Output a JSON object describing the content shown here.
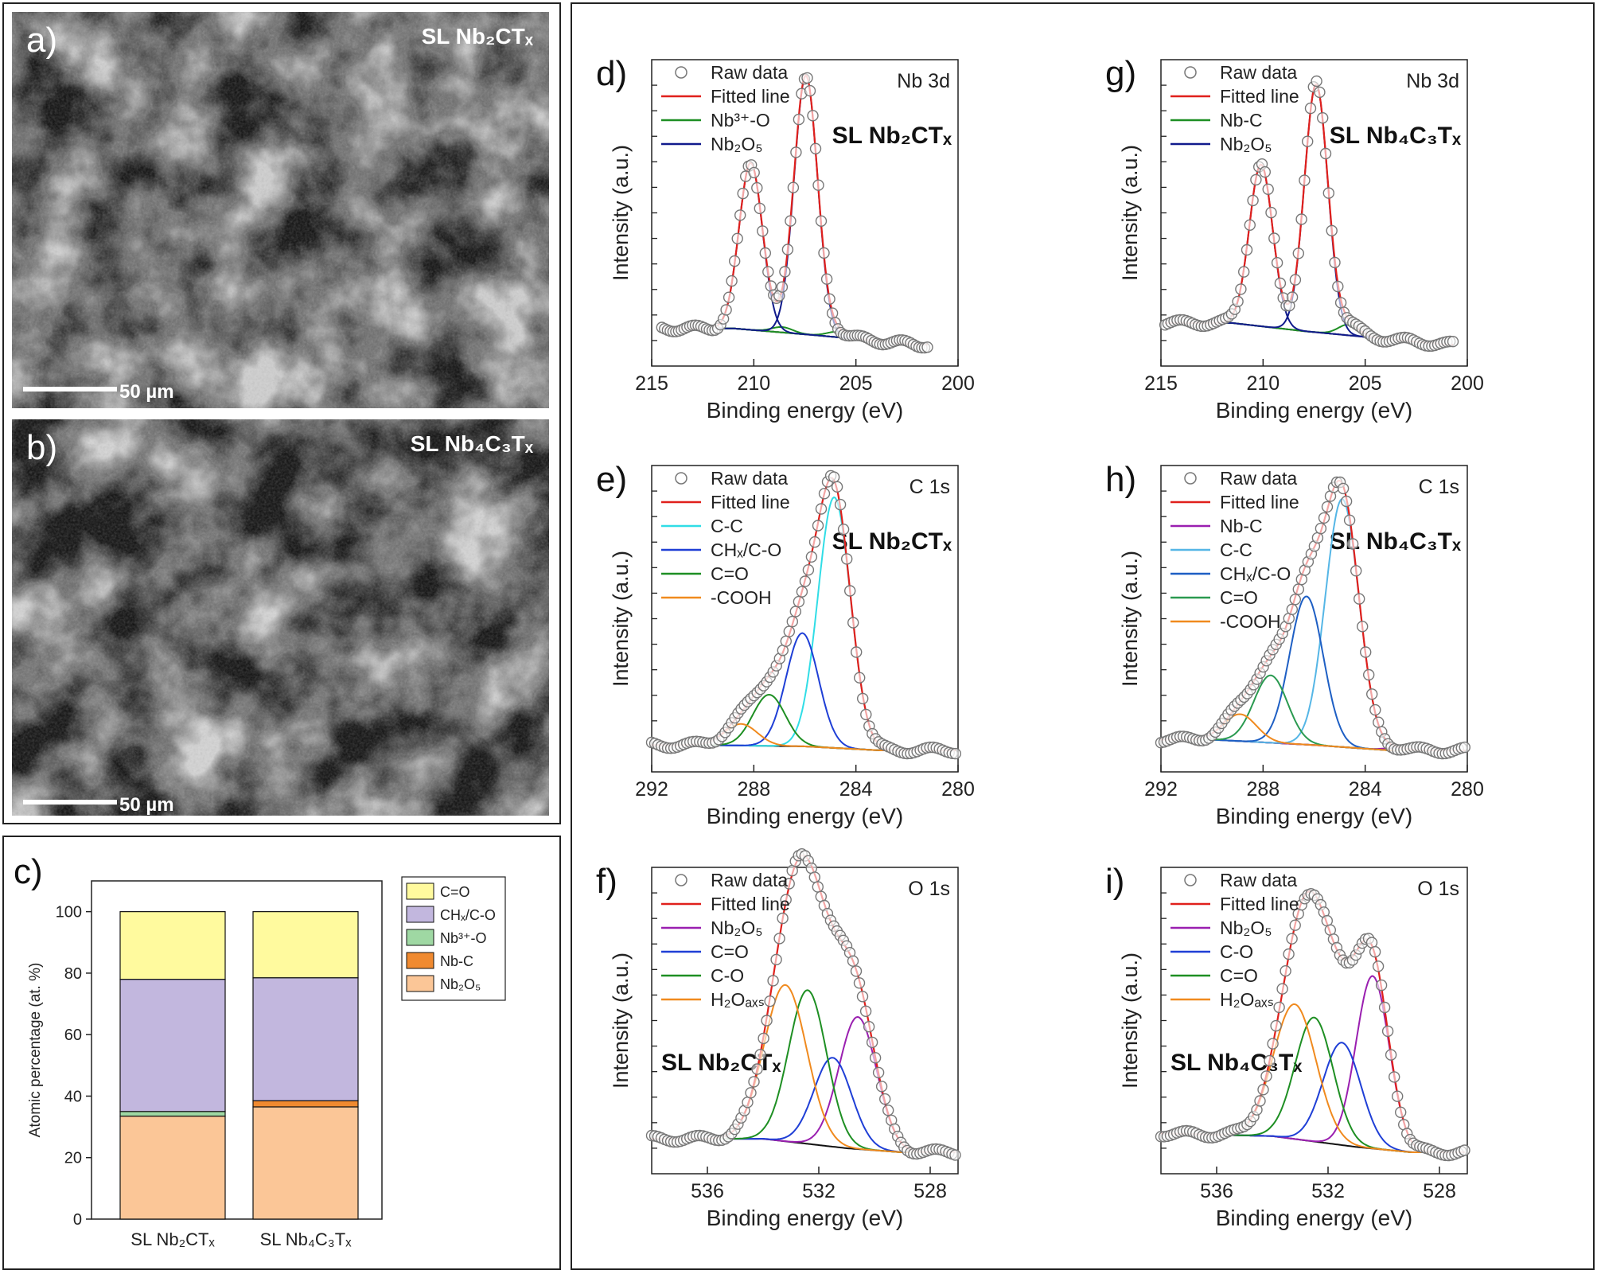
{
  "tem_panels": [
    {
      "letter": "a)",
      "sample_label": "SL Nb₂CTₓ",
      "scale_label": "50 µm"
    },
    {
      "letter": "b)",
      "sample_label": "SL Nb₄C₃Tₓ",
      "scale_label": "50 µm"
    }
  ],
  "colors": {
    "raw": "#777777",
    "fit": "#e0201c",
    "bg": "#111111",
    "green": "#1e8f23",
    "navy": "#101a8c",
    "cyan": "#30dde6",
    "blue": "#1f3fd6",
    "orange": "#f08a1e",
    "purple": "#9a1fb0",
    "skyblue": "#55b6e6",
    "medgreen": "#2a9a50",
    "medblue": "#1e5fc4"
  },
  "chart_data": [
    {
      "panel": "c)",
      "type": "bar",
      "stacked": true,
      "categories": [
        "SL Nb₂CTₓ",
        "SL Nb₄C₃Tₓ"
      ],
      "ylabel": "Atomic percentage (at. %)",
      "ylim": [
        0,
        110
      ],
      "yticks": [
        "0",
        "20",
        "40",
        "60",
        "80",
        "100"
      ],
      "series": [
        {
          "name": "Nb₂O₅",
          "color": "#fbc697",
          "values": [
            33.5,
            36.5
          ]
        },
        {
          "name": "Nb-C",
          "color": "#f08a30",
          "values": [
            0,
            2.0
          ]
        },
        {
          "name": "Nb³⁺-O",
          "color": "#9fd8a3",
          "values": [
            1.5,
            0
          ]
        },
        {
          "name": "CHₓ/C-O",
          "color": "#c2b7de",
          "values": [
            43.0,
            40.0
          ]
        },
        {
          "name": "C=O",
          "color": "#fffa9e",
          "values": [
            22.0,
            21.5
          ]
        }
      ],
      "legend": [
        "C=O",
        "CHₓ/C-O",
        "Nb³⁺-O",
        "Nb-C",
        "Nb₂O₅"
      ]
    },
    {
      "panel": "d)",
      "type": "line",
      "region": "Nb 3d",
      "sample": "SL Nb₂CTₓ",
      "xlabel": "Binding energy (eV)",
      "ylabel": "Intensity (a.u.)",
      "xlim": [
        215,
        200
      ],
      "xticks": [
        "215",
        "210",
        "205",
        "200"
      ],
      "raw_range": [
        214.5,
        201.5
      ],
      "ymax": 1.0,
      "background": [
        [
          214.5,
          0.06
        ],
        [
          211,
          0.06
        ],
        [
          207,
          0.035
        ],
        [
          202,
          0.0
        ]
      ],
      "peaks": [
        {
          "name": "Nb₃⁺-O",
          "label": "Nb³⁺-O",
          "color": "#1e8f23",
          "center": 208.6,
          "height": 0.02,
          "fwhm": 1.2
        },
        {
          "name": "Nb³⁺-O b",
          "label": "",
          "color": "#1e8f23",
          "center": 205.9,
          "height": 0.02,
          "fwhm": 1.2
        },
        {
          "name": "Nb2O5 3d3/2",
          "label": "Nb₂O₅",
          "color": "#101a8c",
          "center": 210.15,
          "height": 0.62,
          "fwhm": 1.35
        },
        {
          "name": "Nb2O5 3d5/2",
          "label": "",
          "color": "#101a8c",
          "center": 207.45,
          "height": 0.96,
          "fwhm": 1.35
        }
      ],
      "legend": [
        "Raw data",
        "Fitted line",
        "Nb³⁺-O",
        "Nb₂O₅"
      ]
    },
    {
      "panel": "g)",
      "type": "line",
      "region": "Nb 3d",
      "sample": "SL Nb₄C₃Tₓ",
      "xlabel": "Binding energy (eV)",
      "ylabel": "Intensity (a.u.)",
      "xlim": [
        215,
        200
      ],
      "xticks": [
        "215",
        "210",
        "205",
        "200"
      ],
      "raw_range": [
        214.8,
        200.7
      ],
      "ymax": 1.0,
      "background": [
        [
          214.8,
          0.08
        ],
        [
          211.5,
          0.08
        ],
        [
          208,
          0.05
        ],
        [
          201,
          0.0
        ]
      ],
      "peaks": [
        {
          "name": "Nb-C",
          "label": "Nb-C",
          "color": "#1e8f23",
          "center": 205.8,
          "height": 0.04,
          "fwhm": 1.2
        },
        {
          "name": "Nb2O5 3d3/2",
          "label": "Nb₂O₅",
          "color": "#101a8c",
          "center": 210.1,
          "height": 0.6,
          "fwhm": 1.35
        },
        {
          "name": "Nb2O5 3d5/2",
          "label": "",
          "color": "#101a8c",
          "center": 207.4,
          "height": 0.92,
          "fwhm": 1.35
        }
      ],
      "legend": [
        "Raw data",
        "Fitted line",
        "Nb-C",
        "Nb₂O₅"
      ]
    },
    {
      "panel": "e)",
      "type": "line",
      "region": "C 1s",
      "sample": "SL Nb₂CTₓ",
      "xlabel": "Binding energy (eV)",
      "ylabel": "Intensity (a.u.)",
      "xlim": [
        292,
        280
      ],
      "xticks": [
        "292",
        "288",
        "284",
        "280"
      ],
      "raw_range": [
        292,
        280.1
      ],
      "ymax": 1.0,
      "background": [
        [
          290,
          0.02
        ],
        [
          286,
          0.015
        ],
        [
          283,
          0.0
        ]
      ],
      "peaks": [
        {
          "name": "C-C",
          "label": "C-C",
          "color": "#30dde6",
          "center": 284.85,
          "height": 0.93,
          "fwhm": 1.5
        },
        {
          "name": "CHx/C-O",
          "label": "CHₓ/C-O",
          "color": "#1f3fd6",
          "center": 286.1,
          "height": 0.42,
          "fwhm": 1.5
        },
        {
          "name": "C=O",
          "label": "C=O",
          "color": "#1e8f23",
          "center": 287.4,
          "height": 0.19,
          "fwhm": 1.5
        },
        {
          "name": "-COOH",
          "label": "-COOH",
          "color": "#f08a1e",
          "center": 288.5,
          "height": 0.08,
          "fwhm": 1.5
        }
      ],
      "legend": [
        "Raw data",
        "Fitted line",
        "C-C",
        "CHₓ/C-O",
        "C=O",
        "-COOH"
      ]
    },
    {
      "panel": "h)",
      "type": "line",
      "region": "C 1s",
      "sample": "SL Nb₄C₃Tₓ",
      "xlabel": "Binding energy (eV)",
      "ylabel": "Intensity (a.u.)",
      "xlim": [
        292,
        280
      ],
      "xticks": [
        "292",
        "288",
        "284",
        "280"
      ],
      "raw_range": [
        292,
        280.1
      ],
      "ymax": 1.0,
      "background": [
        [
          290,
          0.04
        ],
        [
          286,
          0.02
        ],
        [
          283,
          0.0
        ]
      ],
      "peaks": [
        {
          "name": "Nb-C",
          "label": "Nb-C",
          "color": "#9a1fb0",
          "center": 282.8,
          "height": 0.01,
          "fwhm": 1.0
        },
        {
          "name": "C-C",
          "label": "C-C",
          "color": "#55b6e6",
          "center": 284.9,
          "height": 0.92,
          "fwhm": 1.55
        },
        {
          "name": "CHx/C-O",
          "label": "CHₓ/C-O",
          "color": "#1e5fc4",
          "center": 286.3,
          "height": 0.55,
          "fwhm": 1.55
        },
        {
          "name": "C=O",
          "label": "C=O",
          "color": "#2a9a50",
          "center": 287.7,
          "height": 0.25,
          "fwhm": 1.55
        },
        {
          "name": "-COOH",
          "label": "-COOH",
          "color": "#f08a1e",
          "center": 288.9,
          "height": 0.1,
          "fwhm": 1.5
        }
      ],
      "legend": [
        "Raw data",
        "Fitted line",
        "Nb-C",
        "C-C",
        "CHₓ/C-O",
        "C=O",
        "-COOH"
      ]
    },
    {
      "panel": "f)",
      "type": "line",
      "region": "O 1s",
      "sample": "SL Nb₂CTₓ",
      "xlabel": "Binding energy (eV)",
      "ylabel": "Intensity (a.u.)",
      "xlim": [
        538,
        527
      ],
      "xticks": [
        "536",
        "532",
        "528"
      ],
      "raw_range": [
        538,
        527.1
      ],
      "ymax": 1.0,
      "background": [
        [
          538,
          0.05
        ],
        [
          534,
          0.05
        ],
        [
          531,
          0.015
        ],
        [
          529,
          0.0
        ]
      ],
      "peaks": [
        {
          "name": "Nb2O5",
          "label": "Nb₂O₅",
          "color": "#9a1fb0",
          "center": 530.6,
          "height": 0.49,
          "fwhm": 1.6
        },
        {
          "name": "C=O",
          "label": "C=O",
          "color": "#1f3fd6",
          "center": 531.5,
          "height": 0.33,
          "fwhm": 1.6
        },
        {
          "name": "C-O",
          "label": "C-O",
          "color": "#1e8f23",
          "center": 532.4,
          "height": 0.57,
          "fwhm": 1.6
        },
        {
          "name": "H2Oads",
          "label": "H₂Oₐₓₛ",
          "color": "#f08a1e",
          "center": 533.2,
          "height": 0.58,
          "fwhm": 1.8
        }
      ],
      "legend": [
        "Raw data",
        "Fitted line",
        "Nb₂O₅",
        "C=O",
        "C-O",
        "H₂Oₐₓₛ"
      ]
    },
    {
      "panel": "i)",
      "type": "line",
      "region": "O 1s",
      "sample": "SL Nb₄C₃Tₓ",
      "xlabel": "Binding energy (eV)",
      "ylabel": "Intensity (a.u.)",
      "xlim": [
        538,
        527
      ],
      "xticks": [
        "536",
        "532",
        "528"
      ],
      "raw_range": [
        538,
        527.1
      ],
      "ymax": 1.0,
      "background": [
        [
          538,
          0.07
        ],
        [
          534,
          0.06
        ],
        [
          531,
          0.02
        ],
        [
          529,
          0.0
        ]
      ],
      "peaks": [
        {
          "name": "Nb2O5",
          "label": "Nb₂O₅",
          "color": "#9a1fb0",
          "center": 530.4,
          "height": 0.64,
          "fwhm": 1.4
        },
        {
          "name": "C-O",
          "label": "C-O",
          "color": "#1f3fd6",
          "center": 531.5,
          "height": 0.38,
          "fwhm": 1.6
        },
        {
          "name": "C=O",
          "label": "C=O",
          "color": "#1e8f23",
          "center": 532.5,
          "height": 0.46,
          "fwhm": 1.6
        },
        {
          "name": "H2Oads",
          "label": "H₂Oₐₓₛ",
          "color": "#f08a1e",
          "center": 533.2,
          "height": 0.5,
          "fwhm": 1.8
        }
      ],
      "legend": [
        "Raw data",
        "Fitted line",
        "Nb₂O₅",
        "C-O",
        "C=O",
        "H₂Oₐₓₛ"
      ]
    }
  ]
}
